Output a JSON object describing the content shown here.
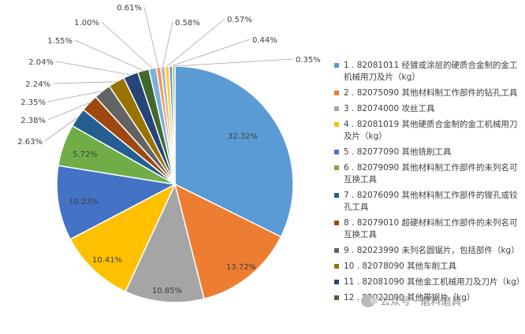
{
  "chart_data": {
    "type": "pie",
    "title": "",
    "slices": [
      {
        "label": "1 . 82081011 经镀或涂层的硬质合金制的金工机械用刀及片（kg）",
        "value": 32.32,
        "display": "32.32%",
        "color": "#5b9bd5"
      },
      {
        "label": "2 . 82075090 其他材料制工作部件的钻孔工具",
        "value": 13.72,
        "display": "13.72%",
        "color": "#ed7d31"
      },
      {
        "label": "3 . 82074000 攻丝工具",
        "value": 10.85,
        "display": "10.85%",
        "color": "#a5a5a5"
      },
      {
        "label": "4 . 82081019 其他硬质合金制的金工机械用刀及片（kg）",
        "value": 10.41,
        "display": "10.41%",
        "color": "#ffc000"
      },
      {
        "label": "5 . 82077090 其他铣削工具",
        "value": 10.23,
        "display": "10.23%",
        "color": "#4472c4"
      },
      {
        "label": "6 . 82079090 其他材料制工作部件的未列名可互换工具",
        "value": 5.72,
        "display": "5.72%",
        "color": "#70ad47"
      },
      {
        "label": "7 . 82076090 其他材料制工作部件的镗孔或铰孔工具",
        "value": 2.63,
        "display": "2.63%",
        "color": "#255e91"
      },
      {
        "label": "8 . 82079010 超硬材料制工作部件的未列名可互换工具",
        "value": 2.38,
        "display": "2.38%",
        "color": "#9e480e"
      },
      {
        "label": "9 . 82023990 未列名圆锯片，包括部件（kg）",
        "value": 2.35,
        "display": "2.35%",
        "color": "#636363"
      },
      {
        "label": "10 . 82078090 其他车削工具",
        "value": 2.24,
        "display": "2.24%",
        "color": "#997300"
      },
      {
        "label": "11 . 82081090 其他金工机械用刀及刀片（kg）",
        "value": 2.04,
        "display": "2.04%",
        "color": "#264478"
      },
      {
        "label": "12 . 82022090 其他带锯片（kg）",
        "value": 1.55,
        "display": "1.55%",
        "color": "#43682b"
      },
      {
        "label": "",
        "value": 1.0,
        "display": "1.00%",
        "color": "#7cafdd"
      },
      {
        "label": "",
        "value": 0.61,
        "display": "0.61%",
        "color": "#f1975a"
      },
      {
        "label": "",
        "value": 0.58,
        "display": "0.58%",
        "color": "#b7b7b7"
      },
      {
        "label": "",
        "value": 0.57,
        "display": "0.57%",
        "color": "#ffcd33"
      },
      {
        "label": "",
        "value": 0.44,
        "display": "0.44%",
        "color": "#698ed0"
      },
      {
        "label": "",
        "value": 0.35,
        "display": "0.35%",
        "color": "#8cc168"
      }
    ],
    "legend_placement": "right"
  },
  "watermark": {
    "text": "公众号 · 磨料磨具",
    "icon": "wechat-icon"
  }
}
